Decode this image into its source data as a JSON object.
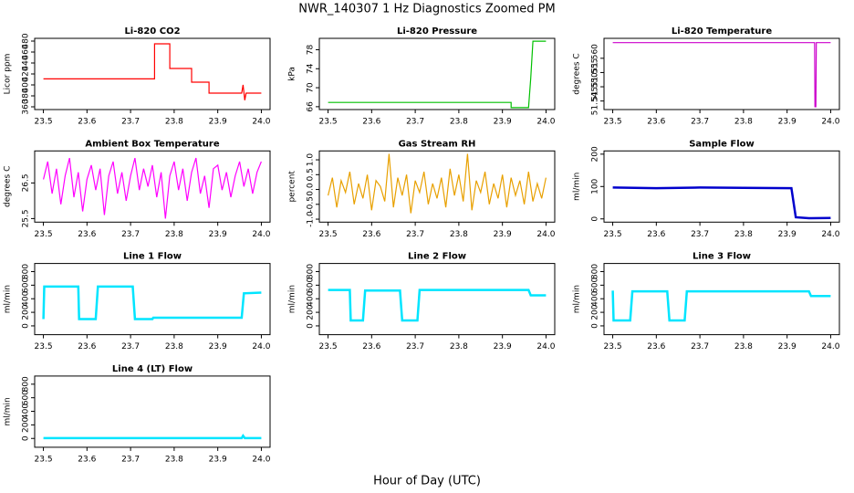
{
  "title": "NWR_140307  1 Hz Diagnostics Zoomed PM",
  "xlabel": "Hour of Day (UTC)",
  "chart_data": [
    {
      "type": "line",
      "title": "Li-820 CO2",
      "ylabel": "Licor ppm",
      "xlim": [
        23.48,
        24.02
      ],
      "xticks": [
        23.5,
        23.6,
        23.7,
        23.8,
        23.9,
        {
          "value": 24,
          "label": "24.0"
        }
      ],
      "ylim": [
        355,
        485
      ],
      "yticks": [
        360,
        380,
        400,
        420,
        440,
        460,
        480
      ],
      "series": [
        {
          "color": "#ff0000",
          "x": [
            23.5,
            23.755,
            23.755,
            23.79,
            23.79,
            23.84,
            23.84,
            23.88,
            23.88,
            23.955,
            23.958,
            23.962,
            23.965,
            24.0
          ],
          "values": [
            411,
            411,
            475,
            475,
            430,
            430,
            405,
            405,
            385,
            385,
            400,
            372,
            385,
            385
          ]
        }
      ]
    },
    {
      "type": "line",
      "title": "Li-820 Pressure",
      "ylabel": "kPa",
      "xlim": [
        23.48,
        24.02
      ],
      "xticks": [
        23.5,
        23.6,
        23.7,
        23.8,
        23.9,
        {
          "value": 24,
          "label": "24.0"
        }
      ],
      "ylim": [
        65.4,
        80.4
      ],
      "yticks": [
        66,
        70,
        74,
        78
      ],
      "series": [
        {
          "color": "#00c000",
          "x": [
            23.5,
            23.92,
            23.92,
            23.96,
            23.965,
            23.97,
            24.0
          ],
          "values": [
            66.9,
            66.9,
            65.8,
            65.8,
            72,
            79.8,
            79.8
          ]
        }
      ]
    },
    {
      "type": "line",
      "title": "Li-820 Temperature",
      "ylabel": "degrees C",
      "xlim": [
        23.48,
        24.02
      ],
      "xticks": [
        23.5,
        23.6,
        23.7,
        23.8,
        23.9,
        {
          "value": 24,
          "label": "24.0"
        }
      ],
      "ylim": [
        51.542,
        51.567
      ],
      "yticks": [
        51.545,
        {
          "value": 51.55,
          "label": "51.550"
        },
        51.555,
        {
          "value": 51.56,
          "label": "51.560"
        }
      ],
      "series": [
        {
          "color": "#cc00cc",
          "x": [
            23.5,
            23.963,
            23.964,
            23.966,
            23.967,
            24.0
          ],
          "values": [
            51.5655,
            51.5655,
            51.543,
            51.543,
            51.5655,
            51.5655
          ]
        }
      ]
    },
    {
      "type": "line",
      "title": "Ambient Box Temperature",
      "ylabel": "degrees C",
      "xlim": [
        23.48,
        24.02
      ],
      "xticks": [
        23.5,
        23.6,
        23.7,
        23.8,
        23.9,
        {
          "value": 24,
          "label": "24.0"
        }
      ],
      "ylim": [
        25.4,
        27.4
      ],
      "yticks": [
        25.5,
        26.5
      ],
      "series": [
        {
          "color": "#ff00ff",
          "x": [
            23.5,
            23.51,
            23.52,
            23.53,
            23.54,
            23.55,
            23.56,
            23.57,
            23.58,
            23.59,
            23.6,
            23.61,
            23.62,
            23.63,
            23.64,
            23.65,
            23.66,
            23.67,
            23.68,
            23.69,
            23.7,
            23.71,
            23.72,
            23.73,
            23.74,
            23.75,
            23.76,
            23.77,
            23.78,
            23.79,
            23.8,
            23.81,
            23.82,
            23.83,
            23.84,
            23.85,
            23.86,
            23.87,
            23.88,
            23.89,
            23.9,
            23.91,
            23.92,
            23.93,
            23.94,
            23.95,
            23.96,
            23.97,
            23.98,
            23.99,
            24.0
          ],
          "values": [
            26.6,
            27.1,
            26.2,
            26.9,
            25.9,
            26.7,
            27.2,
            26.1,
            26.8,
            25.7,
            26.6,
            27.0,
            26.3,
            26.9,
            25.6,
            26.7,
            27.1,
            26.2,
            26.8,
            26.0,
            26.7,
            27.2,
            26.3,
            26.9,
            26.4,
            27.0,
            26.1,
            26.8,
            25.5,
            26.7,
            27.1,
            26.3,
            26.9,
            26.0,
            26.8,
            27.2,
            26.2,
            26.7,
            25.8,
            26.9,
            27.0,
            26.3,
            26.8,
            26.1,
            26.7,
            27.1,
            26.4,
            26.9,
            26.2,
            26.8,
            27.1
          ]
        }
      ]
    },
    {
      "type": "line",
      "title": "Gas Stream RH",
      "ylabel": "percent",
      "xlim": [
        23.48,
        24.02
      ],
      "xticks": [
        23.5,
        23.6,
        23.7,
        23.8,
        23.9,
        {
          "value": 24,
          "label": "24.0"
        }
      ],
      "ylim": [
        -1.1,
        1.3
      ],
      "yticks": [
        {
          "value": -1,
          "label": "-1.0"
        },
        -0.5,
        {
          "value": 0,
          "label": "0.0"
        },
        0.5,
        {
          "value": 1,
          "label": "1.0"
        }
      ],
      "series": [
        {
          "color": "#e8a000",
          "x": [
            23.5,
            23.51,
            23.52,
            23.53,
            23.54,
            23.55,
            23.56,
            23.57,
            23.58,
            23.59,
            23.6,
            23.61,
            23.62,
            23.63,
            23.64,
            23.65,
            23.66,
            23.67,
            23.68,
            23.69,
            23.7,
            23.71,
            23.72,
            23.73,
            23.74,
            23.75,
            23.76,
            23.77,
            23.78,
            23.79,
            23.8,
            23.81,
            23.82,
            23.83,
            23.84,
            23.85,
            23.86,
            23.87,
            23.88,
            23.89,
            23.9,
            23.91,
            23.92,
            23.93,
            23.94,
            23.95,
            23.96,
            23.97,
            23.98,
            23.99,
            24.0
          ],
          "values": [
            -0.2,
            0.4,
            -0.6,
            0.3,
            -0.1,
            0.6,
            -0.5,
            0.2,
            -0.3,
            0.5,
            -0.7,
            0.3,
            0.1,
            -0.4,
            1.2,
            -0.6,
            0.4,
            -0.2,
            0.5,
            -0.8,
            0.3,
            -0.1,
            0.6,
            -0.5,
            0.2,
            -0.3,
            0.4,
            -0.6,
            0.7,
            -0.2,
            0.5,
            -0.4,
            1.2,
            -0.7,
            0.3,
            -0.1,
            0.6,
            -0.5,
            0.2,
            -0.3,
            0.5,
            -0.6,
            0.4,
            -0.2,
            0.3,
            -0.5,
            0.6,
            -0.4,
            0.2,
            -0.3,
            0.4
          ]
        }
      ]
    },
    {
      "type": "line",
      "title": "Sample Flow",
      "ylabel": "ml/min",
      "xlim": [
        23.48,
        24.02
      ],
      "xticks": [
        23.5,
        23.6,
        23.7,
        23.8,
        23.9,
        {
          "value": 24,
          "label": "24.0"
        }
      ],
      "ylim": [
        -10,
        210
      ],
      "yticks": [
        0,
        100,
        200
      ],
      "series": [
        {
          "color": "#0000cc",
          "x": [
            23.5,
            23.6,
            23.7,
            23.8,
            23.91,
            23.92,
            23.95,
            24.0
          ],
          "values": [
            97,
            95,
            97,
            96,
            95,
            5,
            2,
            3
          ]
        }
      ]
    },
    {
      "type": "line",
      "title": "Line 1 Flow",
      "ylabel": "ml/min",
      "xlim": [
        23.48,
        24.02
      ],
      "xticks": [
        23.5,
        23.6,
        23.7,
        23.8,
        23.9,
        {
          "value": 24,
          "label": "24.0"
        }
      ],
      "ylim": [
        -130,
        920
      ],
      "yticks": [
        0,
        200,
        400,
        600,
        800
      ],
      "series": [
        {
          "color": "#00e5ff",
          "x": [
            23.5,
            23.502,
            23.58,
            23.582,
            23.62,
            23.625,
            23.705,
            23.71,
            23.75,
            23.752,
            23.955,
            23.96,
            24.0
          ],
          "values": [
            100,
            580,
            580,
            100,
            100,
            580,
            580,
            100,
            100,
            120,
            120,
            480,
            490
          ]
        }
      ]
    },
    {
      "type": "line",
      "title": "Line 2 Flow",
      "ylabel": "ml/min",
      "xlim": [
        23.48,
        24.02
      ],
      "xticks": [
        23.5,
        23.6,
        23.7,
        23.8,
        23.9,
        {
          "value": 24,
          "label": "24.0"
        }
      ],
      "ylim": [
        -130,
        920
      ],
      "yticks": [
        0,
        200,
        400,
        600,
        800
      ],
      "series": [
        {
          "color": "#00e5ff",
          "x": [
            23.5,
            23.55,
            23.552,
            23.58,
            23.585,
            23.665,
            23.67,
            23.705,
            23.71,
            23.96,
            23.965,
            24.0
          ],
          "values": [
            530,
            530,
            80,
            80,
            520,
            520,
            80,
            80,
            530,
            530,
            450,
            450
          ]
        }
      ]
    },
    {
      "type": "line",
      "title": "Line 3 Flow",
      "ylabel": "ml/min",
      "xlim": [
        23.48,
        24.02
      ],
      "xticks": [
        23.5,
        23.6,
        23.7,
        23.8,
        23.9,
        {
          "value": 24,
          "label": "24.0"
        }
      ],
      "ylim": [
        -130,
        920
      ],
      "yticks": [
        0,
        200,
        400,
        600,
        800
      ],
      "series": [
        {
          "color": "#00e5ff",
          "x": [
            23.5,
            23.502,
            23.54,
            23.545,
            23.625,
            23.63,
            23.665,
            23.67,
            23.95,
            23.955,
            24.0
          ],
          "values": [
            520,
            80,
            80,
            510,
            510,
            80,
            80,
            510,
            510,
            440,
            440
          ]
        }
      ]
    },
    {
      "type": "line",
      "title": "Line 4 (LT) Flow",
      "ylabel": "ml/min",
      "xlim": [
        23.48,
        24.02
      ],
      "xticks": [
        23.5,
        23.6,
        23.7,
        23.8,
        23.9,
        {
          "value": 24,
          "label": "24.0"
        }
      ],
      "ylim": [
        -130,
        920
      ],
      "yticks": [
        0,
        200,
        400,
        600,
        800
      ],
      "series": [
        {
          "color": "#00e5ff",
          "x": [
            23.5,
            23.955,
            23.958,
            23.962,
            24.0
          ],
          "values": [
            5,
            5,
            40,
            5,
            5
          ]
        }
      ]
    }
  ]
}
